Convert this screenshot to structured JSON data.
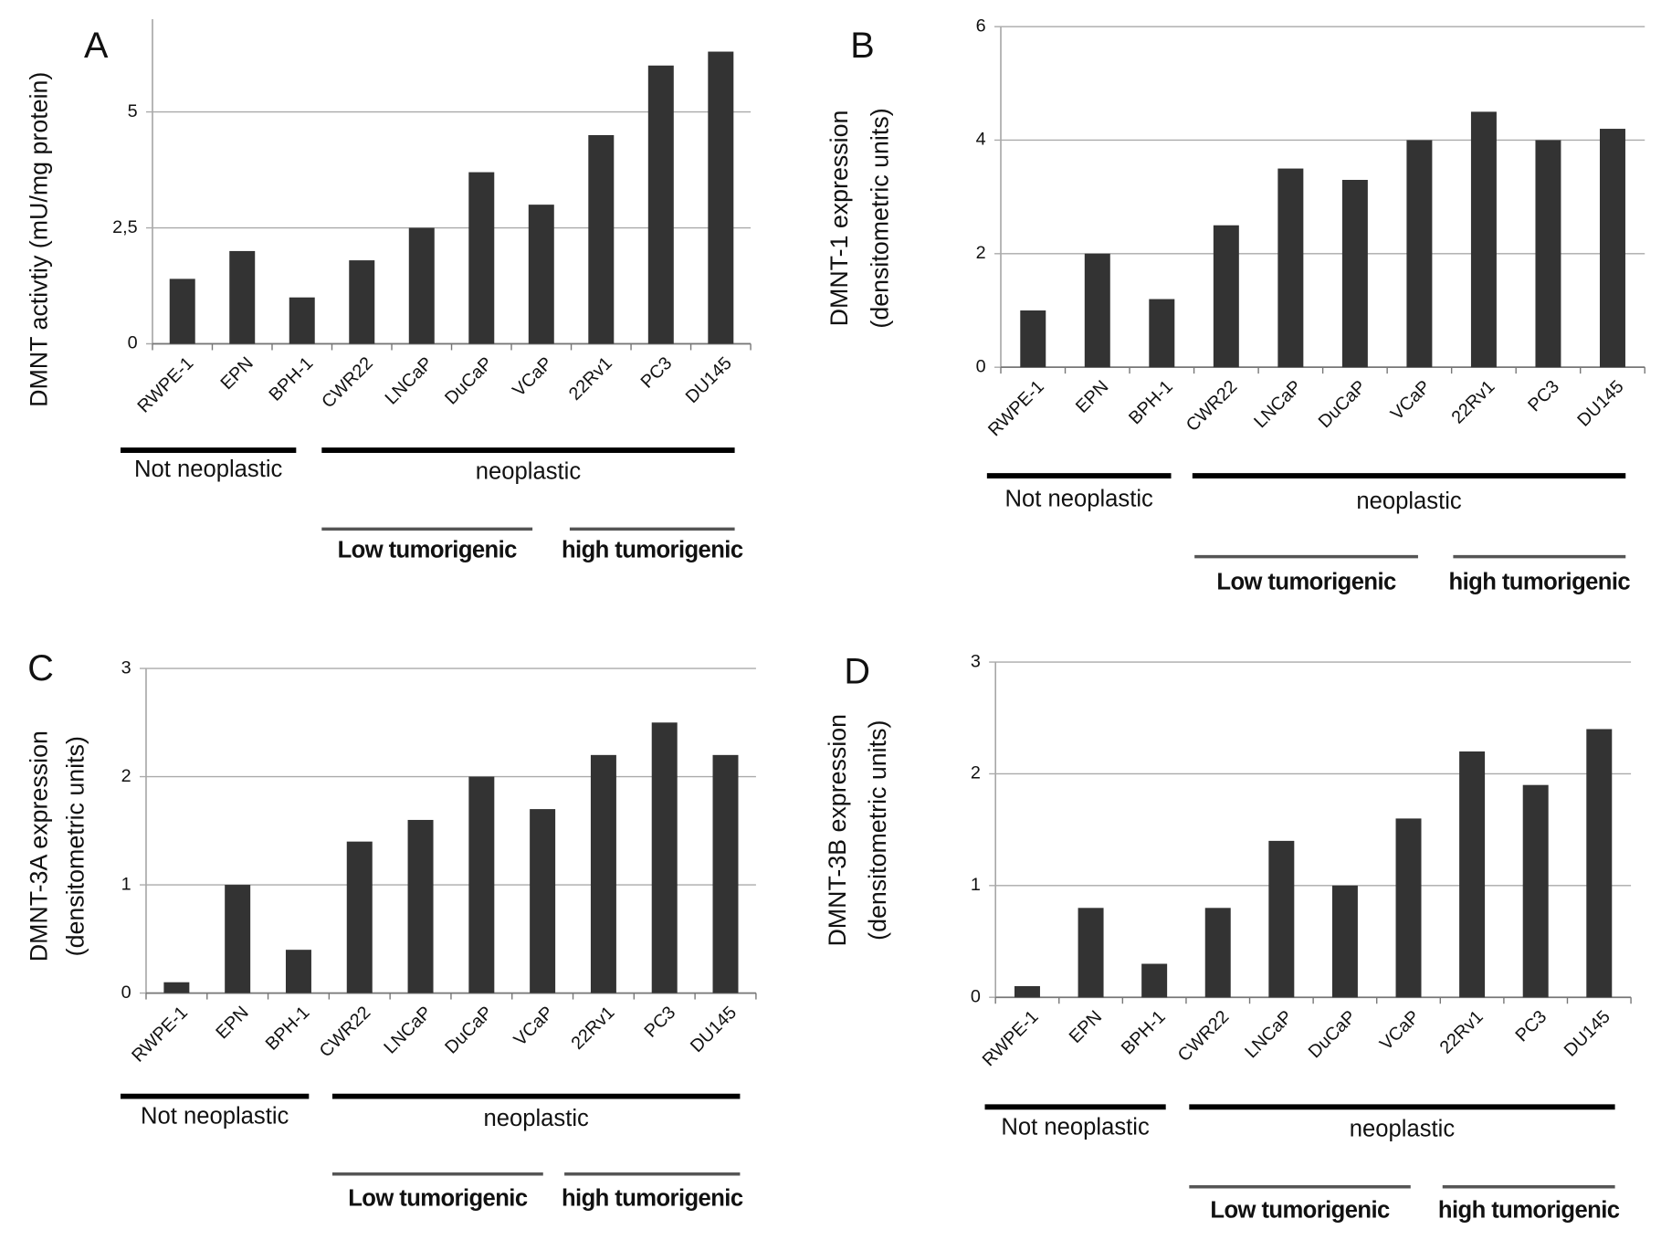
{
  "chart_data": [
    {
      "type": "bar",
      "panel": "A",
      "ylabel": [
        "DMNT activtiy (mU/mg protein)"
      ],
      "categories": [
        "RWPE-1",
        "EPN",
        "BPH-1",
        "CWR22",
        "LNCaP",
        "DuCaP",
        "VCaP",
        "22Rv1",
        "PC3",
        "DU145"
      ],
      "values": [
        1.4,
        2.0,
        1.0,
        1.8,
        2.5,
        3.7,
        3.0,
        4.5,
        6.0,
        6.3
      ],
      "color": "#333333",
      "ylim": [
        0,
        7
      ],
      "yticks": [
        0,
        {
          "value": 2.5,
          "label": "2,5"
        },
        5
      ],
      "grid": true,
      "groups": [
        "Not neoplastic",
        "neoplastic",
        "Low tumorigenic",
        "high tumorigenic"
      ]
    },
    {
      "type": "bar",
      "panel": "B",
      "ylabel": [
        "DMNT-1 expression",
        "(densitometric units)"
      ],
      "categories": [
        "RWPE-1",
        "EPN",
        "BPH-1",
        "CWR22",
        "LNCaP",
        "DuCaP",
        "VCaP",
        "22Rv1",
        "PC3",
        "DU145"
      ],
      "values": [
        1.0,
        2.0,
        1.2,
        2.5,
        3.5,
        3.3,
        4.0,
        4.5,
        4.0,
        4.2
      ],
      "color": "#333333",
      "ylim": [
        0,
        6
      ],
      "yticks": [
        0,
        2,
        4,
        6
      ],
      "grid": true,
      "groups": [
        "Not neoplastic",
        "neoplastic",
        "Low tumorigenic",
        "high tumorigenic"
      ]
    },
    {
      "type": "bar",
      "panel": "C",
      "ylabel": [
        "DMNT-3A expression",
        "(densitometric units)"
      ],
      "categories": [
        "RWPE-1",
        "EPN",
        "BPH-1",
        "CWR22",
        "LNCaP",
        "DuCaP",
        "VCaP",
        "22Rv1",
        "PC3",
        "DU145"
      ],
      "values": [
        0.1,
        1.0,
        0.4,
        1.4,
        1.6,
        2.0,
        1.7,
        2.2,
        2.5,
        2.2
      ],
      "color": "#333333",
      "ylim": [
        0,
        3
      ],
      "yticks": [
        0,
        1,
        2,
        3
      ],
      "grid": true,
      "groups": [
        "Not neoplastic",
        "neoplastic",
        "Low tumorigenic",
        "high tumorigenic"
      ]
    },
    {
      "type": "bar",
      "panel": "D",
      "ylabel": [
        "DMNT-3B expression",
        "(densitometric  units)"
      ],
      "categories": [
        "RWPE-1",
        "EPN",
        "BPH-1",
        "CWR22",
        "LNCaP",
        "DuCaP",
        "VCaP",
        "22Rv1",
        "PC3",
        "DU145"
      ],
      "values": [
        0.1,
        0.8,
        0.3,
        0.8,
        1.4,
        1.0,
        1.6,
        2.2,
        1.9,
        2.4
      ],
      "color": "#333333",
      "ylim": [
        0,
        3
      ],
      "yticks": [
        0,
        1,
        2,
        3
      ],
      "grid": true,
      "groups": [
        "Not neoplastic",
        "neoplastic",
        "Low tumorigenic",
        "high tumorigenic"
      ]
    }
  ]
}
